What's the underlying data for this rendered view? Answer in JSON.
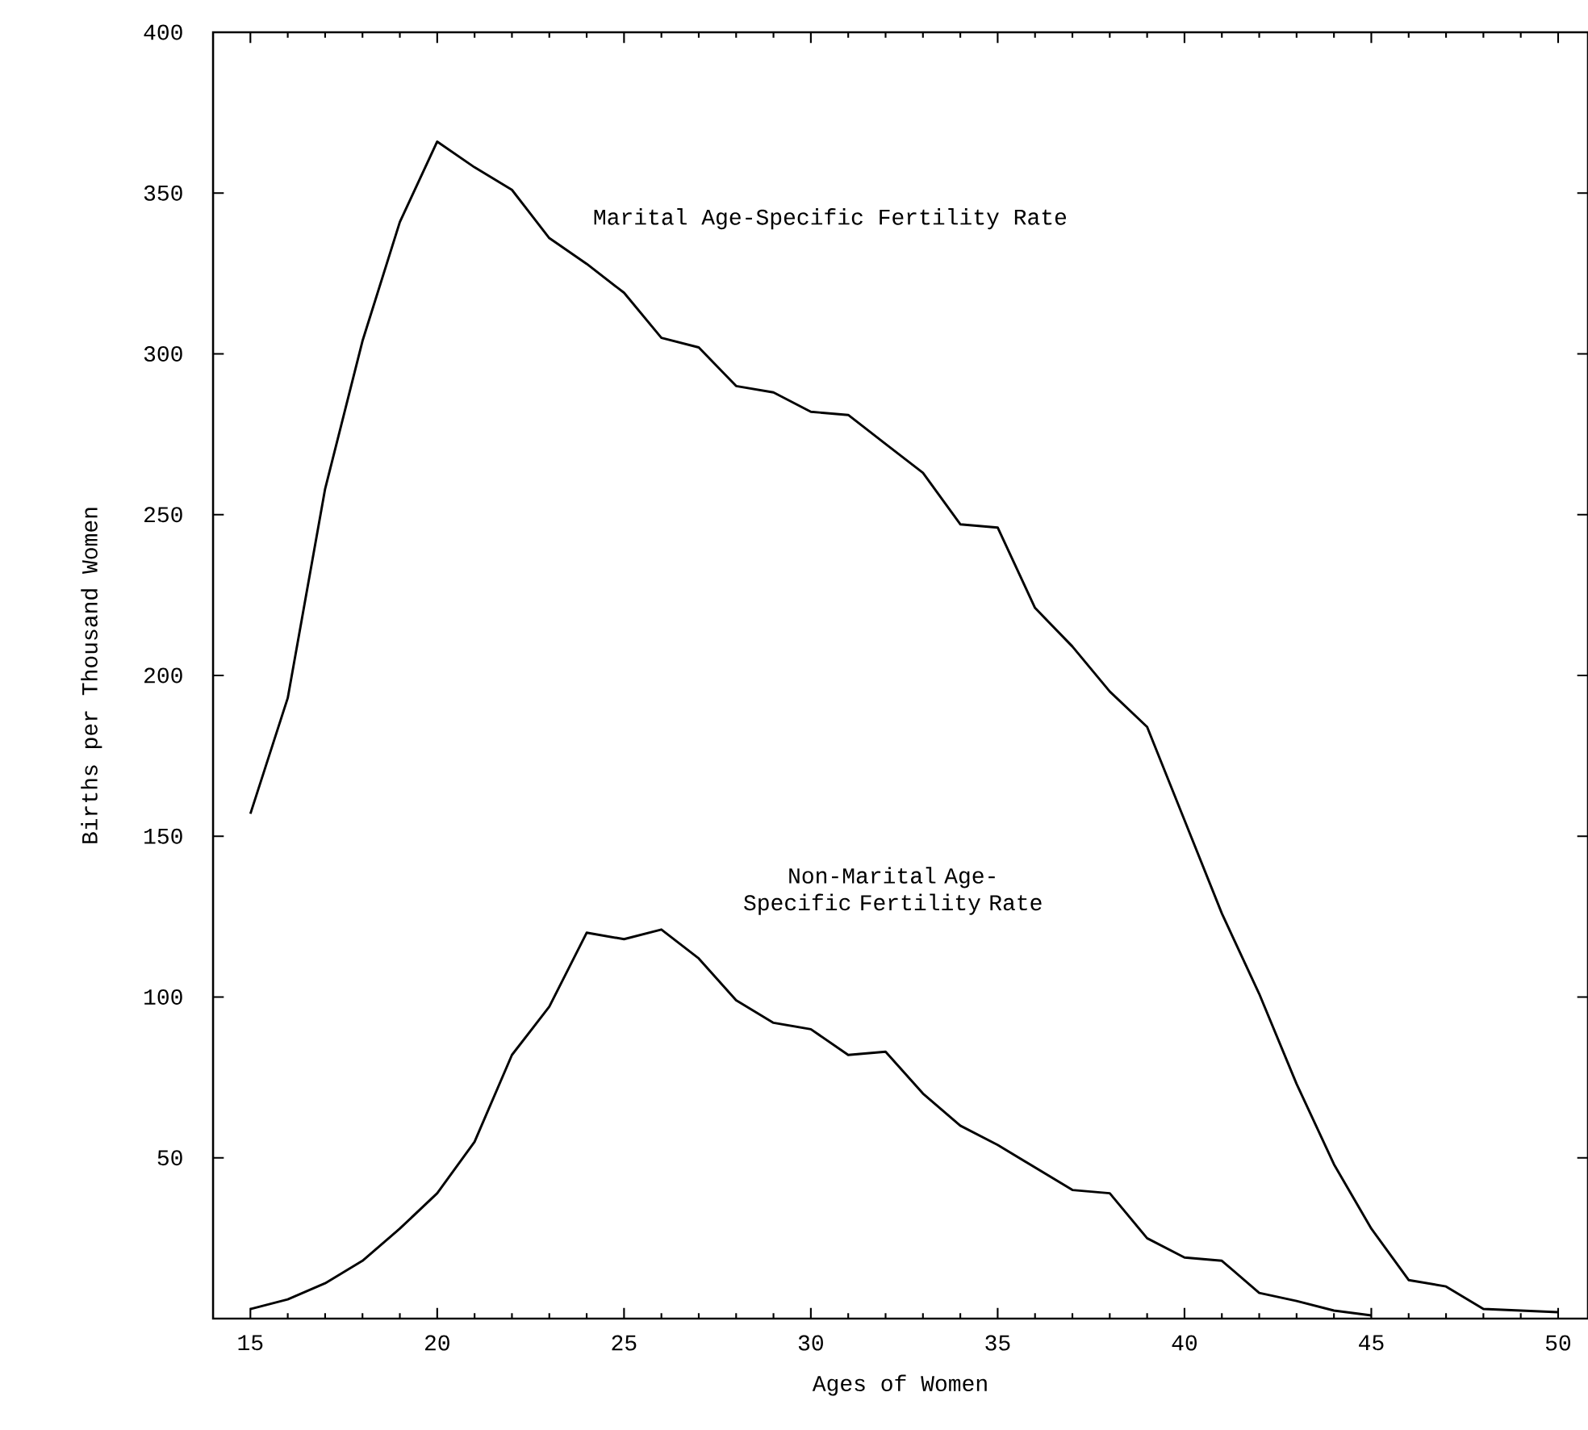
{
  "chart_data": {
    "type": "line",
    "xlabel": "Ages of Women",
    "ylabel": "Births per Thousand Women",
    "xlim": [
      14,
      50.8
    ],
    "ylim": [
      0,
      400
    ],
    "xticks": [
      15,
      20,
      25,
      30,
      35,
      40,
      45,
      50
    ],
    "yticks": [
      {
        "value": 50,
        "label": "50"
      },
      {
        "value": 100,
        "label": "100"
      },
      {
        "value": 150,
        "label": "150"
      },
      {
        "value": 200,
        "label": "200"
      },
      {
        "value": 250,
        "label": "250"
      },
      {
        "value": 300,
        "label": "300"
      },
      {
        "value": 350,
        "label": "350"
      },
      {
        "value": 400,
        "label": "400"
      }
    ],
    "grid": false,
    "marker": "none",
    "line_style": "solid",
    "series": [
      {
        "name": "Marital Age-Specific Fertility Rate",
        "color": "#000000",
        "x": [
          15,
          16,
          17,
          18,
          19,
          20,
          21,
          22,
          23,
          24,
          25,
          26,
          27,
          28,
          29,
          30,
          31,
          32,
          33,
          34,
          35,
          36,
          37,
          38,
          39,
          40,
          41,
          42,
          43,
          44,
          45,
          46,
          47,
          48,
          49,
          50
        ],
        "values": [
          157,
          193,
          258,
          304,
          341,
          366,
          358,
          351,
          336,
          328,
          319,
          305,
          302,
          290,
          288,
          282,
          281,
          272,
          263,
          247,
          246,
          221,
          209,
          195,
          184,
          155,
          126,
          101,
          73,
          48,
          28,
          12,
          10,
          3,
          2.5,
          2
        ]
      },
      {
        "name": "Non-Marital Age-Specific Fertility Rate",
        "color": "#000000",
        "x": [
          15,
          16,
          17,
          18,
          19,
          20,
          21,
          22,
          23,
          24,
          25,
          26,
          27,
          28,
          29,
          30,
          31,
          32,
          33,
          34,
          35,
          36,
          37,
          38,
          39,
          40,
          41,
          42,
          43,
          44,
          45
        ],
        "values": [
          3,
          6,
          11,
          18,
          28,
          39,
          55,
          82,
          97,
          120,
          118,
          121,
          112,
          99,
          92,
          90,
          82,
          83,
          70,
          60,
          54,
          47,
          40,
          39,
          25,
          19,
          18,
          8,
          5.5,
          2.5,
          1
        ]
      }
    ]
  }
}
